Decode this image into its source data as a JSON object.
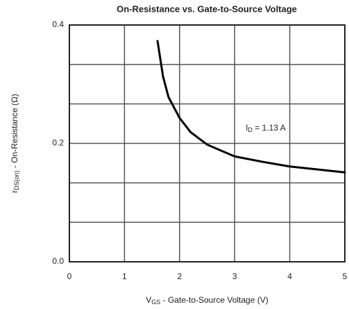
{
  "chart_data": {
    "type": "line",
    "title": "On-Resistance vs. Gate-to-Source Voltage",
    "x_label": {
      "symbol": "V",
      "subscript": "GS",
      "text": " - Gate-to-Source Voltage (V)"
    },
    "y_label": {
      "symbol": "r",
      "subscript": "DS(on)",
      "text": " - On-Resistance (Ω)"
    },
    "annotation": {
      "symbol": "I",
      "subscript": "D",
      "text": " = 1.13 A",
      "x": 3.2,
      "y": 0.225
    },
    "x": [
      1.6,
      1.7,
      1.8,
      2.0,
      2.2,
      2.5,
      3.0,
      3.5,
      4.0,
      4.5,
      5.0
    ],
    "series": [
      {
        "color": "#000000",
        "values": [
          0.373,
          0.313,
          0.278,
          0.243,
          0.219,
          0.198,
          0.178,
          0.169,
          0.161,
          0.156,
          0.151
        ]
      }
    ],
    "xlim": [
      0,
      5
    ],
    "ylim": [
      0,
      0.4
    ],
    "xticks": [
      0,
      1,
      2,
      3,
      4,
      5
    ],
    "yticks": [
      {
        "value": 0,
        "label": "0.0"
      },
      0.2,
      0.4
    ],
    "y_minor_grid": [
      0.0667,
      0.1333,
      0.2667,
      0.3333
    ],
    "grid": true
  }
}
